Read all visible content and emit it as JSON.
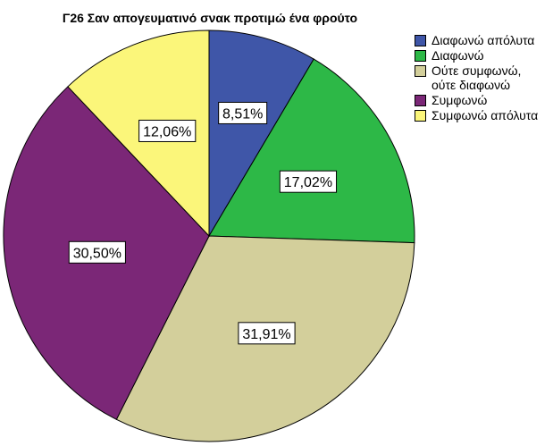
{
  "chart_data": {
    "type": "pie",
    "title": "Γ26 Σαν απογευματινό σνακ προτιμώ ένα φρούτο",
    "slices": [
      {
        "label": "Διαφωνώ απόλυτα",
        "value": 8.51,
        "value_label": "8,51%",
        "color": "#3f56a8"
      },
      {
        "label": "Διαφωνώ",
        "value": 17.02,
        "value_label": "17,02%",
        "color": "#2db847"
      },
      {
        "label": "Ούτε συμφωνώ,\nούτε διαφωνώ",
        "value": 31.91,
        "value_label": "31,91%",
        "color": "#d3cf9b"
      },
      {
        "label": "Συμφωνώ",
        "value": 30.5,
        "value_label": "30,50%",
        "color": "#7b2777"
      },
      {
        "label": "Συμφωνώ απόλυτα",
        "value": 12.06,
        "value_label": "12,06%",
        "color": "#fbf67a"
      }
    ],
    "start_angle": "top (12 o'clock), clockwise",
    "legend_position": "right"
  }
}
